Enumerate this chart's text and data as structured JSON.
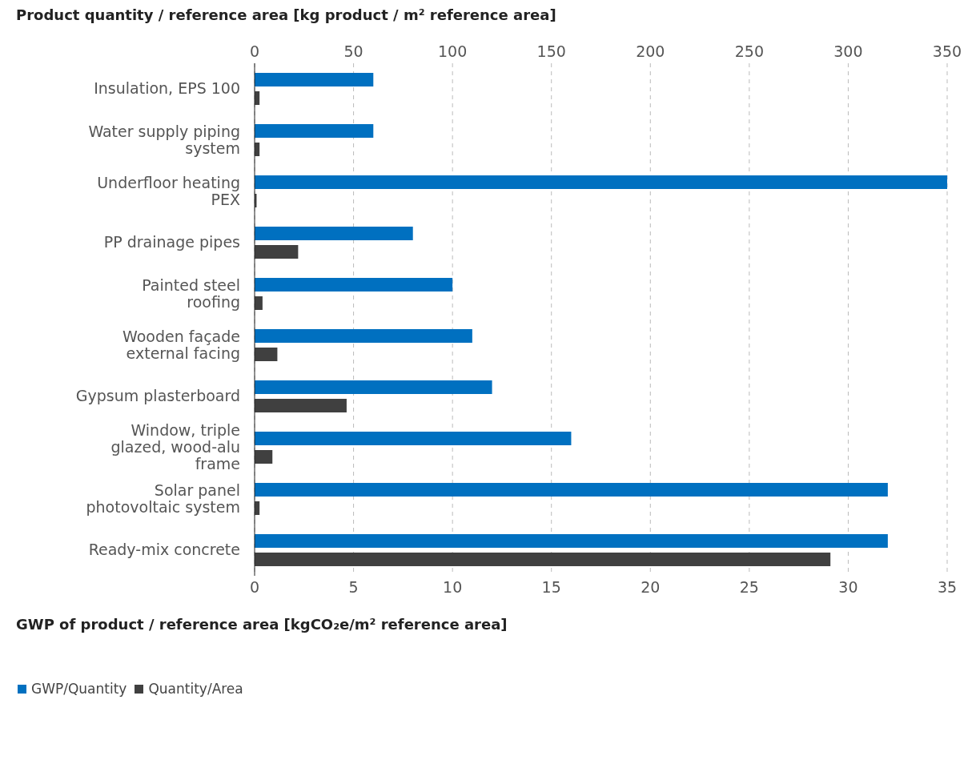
{
  "chart_data": {
    "type": "bar",
    "orientation": "horizontal",
    "x2label": "Product quantity / reference area [kg product / m² reference area]",
    "xlabel": "GWP of product / reference area [kgCO₂e/m² reference area]",
    "categories": [
      "Insulation, EPS 100",
      "Water supply piping system",
      "Underfloor heating PEX",
      "PP drainage pipes",
      "Painted steel roofing",
      "Wooden façade external facing",
      "Gypsum plasterboard",
      "Window, triple glazed, wood-alu frame",
      "Solar panel photovoltaic system",
      "Ready-mix concrete"
    ],
    "series": [
      {
        "name": "GWP/Quantity",
        "color": "#0070c0",
        "values": [
          6,
          6,
          35,
          8,
          10,
          11,
          12,
          16,
          32,
          32
        ]
      },
      {
        "name": "Quantity/Area",
        "color": "#404040",
        "axis": "x2",
        "values": [
          2.5,
          2.5,
          1,
          22,
          4,
          11.5,
          46.5,
          9,
          2.5,
          291
        ]
      }
    ],
    "xlim": [
      0,
      35
    ],
    "xticks": [
      0,
      5,
      10,
      15,
      20,
      25,
      30,
      35
    ],
    "x2lim": [
      0,
      350
    ],
    "x2ticks": [
      0,
      50,
      100,
      150,
      200,
      250,
      300,
      350
    ],
    "grid": "x",
    "legend": "bottom left"
  }
}
